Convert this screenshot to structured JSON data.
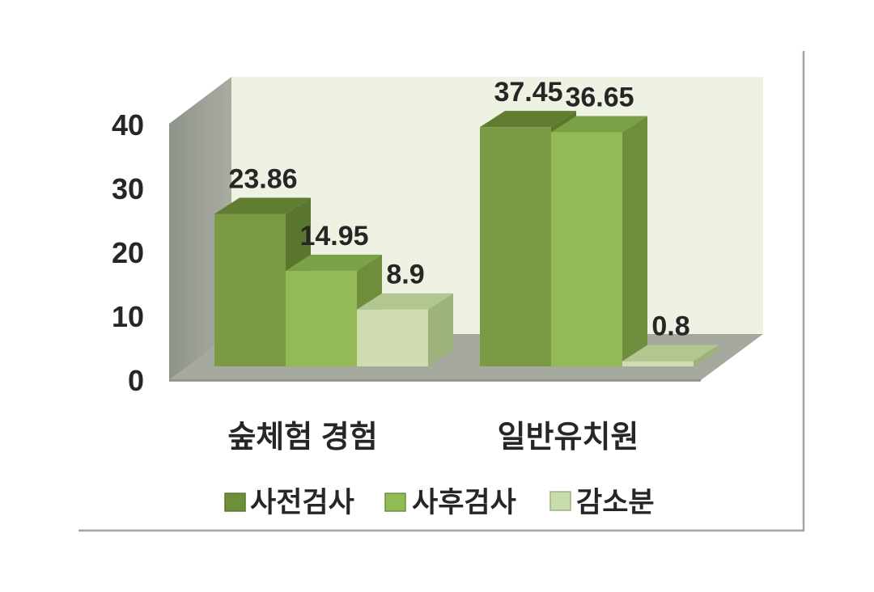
{
  "chart_data": {
    "type": "bar",
    "projection": "3d",
    "title": "",
    "xlabel": "",
    "ylabel": "",
    "categories": [
      "숲체험 경험",
      "일반유치원"
    ],
    "series": [
      {
        "name": "사전검사",
        "values": [
          23.86,
          37.45
        ],
        "colors": {
          "front": "#7a9a43",
          "top": "#617d31",
          "side": "#5b762e",
          "legend": "#6e8f3a"
        }
      },
      {
        "name": "사후검사",
        "values": [
          14.95,
          36.65
        ],
        "colors": {
          "front": "#94ba58",
          "top": "#7ba046",
          "side": "#6e8e3e",
          "legend": "#92bb54"
        }
      },
      {
        "name": "감소분",
        "values": [
          8.9,
          0.8
        ],
        "colors": {
          "front": "#cedcb0",
          "top": "#b2c692",
          "side": "#9db37b",
          "legend": "#c9dcab"
        }
      }
    ],
    "value_labels": [
      "23.86",
      "14.95",
      "8.9",
      "37.45",
      "36.65",
      "0.8"
    ],
    "y_ticks": [
      "0",
      "10",
      "20",
      "30",
      "40"
    ],
    "ylim": [
      0,
      40
    ],
    "grid": false,
    "legend_position": "bottom",
    "data_labels_shown": true,
    "frame_color": "#a3a3a3",
    "wall_back_color": "#edf2e2",
    "wall_side_color_dark": "#8f948b",
    "wall_side_color_light": "#a9aca1",
    "floor_color": "#a6a99e",
    "text_color": "#262626"
  }
}
